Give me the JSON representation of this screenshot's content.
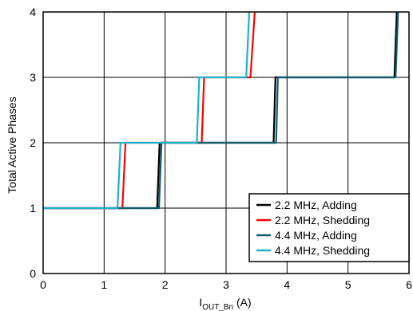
{
  "chart_data": {
    "type": "line",
    "xlabel": {
      "main": "I",
      "sub": "OUT_Bn",
      "unit": " (A)"
    },
    "ylabel": "Total Active Phases",
    "xlim": [
      0,
      6
    ],
    "ylim": [
      0,
      4
    ],
    "x_ticks": [
      "0",
      "1",
      "2",
      "3",
      "4",
      "5",
      "6"
    ],
    "y_ticks": [
      "0",
      "1",
      "2",
      "3",
      "4"
    ],
    "grid": true,
    "legend_position": "bottom-right",
    "series": [
      {
        "name": "2.2 MHz, Adding",
        "color": "#000000",
        "points": [
          [
            0,
            1
          ],
          [
            1.87,
            1
          ],
          [
            1.91,
            2
          ],
          [
            3.78,
            2
          ],
          [
            3.81,
            3
          ],
          [
            5.76,
            3
          ],
          [
            5.8,
            4
          ]
        ]
      },
      {
        "name": "2.2 MHz, Shedding",
        "color": "#ff0000",
        "points": [
          [
            0,
            1
          ],
          [
            1.3,
            1
          ],
          [
            1.35,
            2
          ],
          [
            2.6,
            2
          ],
          [
            2.64,
            3
          ],
          [
            3.4,
            3
          ],
          [
            3.47,
            4
          ]
        ]
      },
      {
        "name": "4.4 MHz, Adding",
        "color": "#0e5c6b",
        "points": [
          [
            0,
            1
          ],
          [
            1.9,
            1
          ],
          [
            1.94,
            2
          ],
          [
            3.82,
            2
          ],
          [
            3.85,
            3
          ],
          [
            5.78,
            3
          ],
          [
            5.82,
            4
          ]
        ]
      },
      {
        "name": "4.4 MHz, Shedding",
        "color": "#1ab3cc",
        "points": [
          [
            0,
            1
          ],
          [
            1.22,
            1
          ],
          [
            1.27,
            2
          ],
          [
            2.52,
            2
          ],
          [
            2.56,
            3
          ],
          [
            3.33,
            3
          ],
          [
            3.38,
            4
          ]
        ]
      }
    ]
  }
}
